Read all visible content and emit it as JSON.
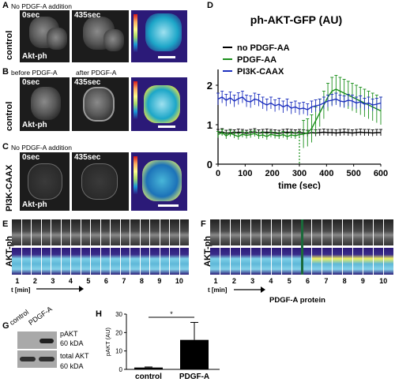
{
  "panels": {
    "a": {
      "letter": "A",
      "caption": "No PDGF-A addition",
      "row_label": "control",
      "t0": "0sec",
      "t1": "435sec",
      "marker": "Akt-ph"
    },
    "b": {
      "letter": "B",
      "caption_left": "before PDGF-A",
      "caption_right": "after PDGF-A",
      "row_label": "control",
      "t0": "0sec",
      "t1": "435sec",
      "marker": "Akt-ph"
    },
    "c": {
      "letter": "C",
      "caption": "No PDGF-A addition",
      "row_label": "PI3K-CAAX",
      "t0": "0sec",
      "t1": "435sec",
      "marker": "Akt-ph"
    },
    "d": {
      "letter": "D"
    },
    "e": {
      "letter": "E",
      "row_label": "AKT-ph",
      "ticks": [
        "1",
        "2",
        "3",
        "4",
        "5",
        "6",
        "7",
        "8",
        "9",
        "10"
      ],
      "axis_label": "t [min]"
    },
    "f": {
      "letter": "F",
      "row_label": "AKT-ph",
      "ticks": [
        "1",
        "2",
        "3",
        "4",
        "5",
        "6",
        "7",
        "8",
        "9",
        "10"
      ],
      "axis_label": "t [min]",
      "arrow_label": "PDGF-A protein"
    },
    "g": {
      "letter": "G",
      "lanes": [
        "control",
        "PDGF-A"
      ],
      "band1": "pAKT",
      "band1_kda": "60 kDA",
      "band2": "total AKT",
      "band2_kda": "60 kDA"
    },
    "h": {
      "letter": "H"
    }
  },
  "chart_data": [
    {
      "type": "line",
      "title": "ph-AKT-GFP (AU)",
      "xlabel": "time (sec)",
      "ylabel": "",
      "xlim": [
        0,
        600
      ],
      "ylim": [
        0,
        2.2
      ],
      "xticks": [
        "0",
        "100",
        "200",
        "300",
        "400",
        "500",
        "600"
      ],
      "yticks": [
        "0",
        "1",
        "2"
      ],
      "annotation": {
        "x": 300,
        "style": "dotted vertical line"
      },
      "legend": "top",
      "x": [
        0,
        15,
        30,
        45,
        60,
        75,
        90,
        105,
        120,
        135,
        150,
        165,
        180,
        195,
        210,
        225,
        240,
        255,
        270,
        285,
        300,
        315,
        330,
        345,
        360,
        375,
        390,
        405,
        420,
        435,
        450,
        465,
        480,
        495,
        510,
        525,
        540,
        555,
        570,
        585,
        600
      ],
      "series": [
        {
          "name": "no PDGF-AA",
          "color": "#000000",
          "values": [
            0.8,
            0.82,
            0.78,
            0.8,
            0.79,
            0.81,
            0.8,
            0.78,
            0.8,
            0.82,
            0.79,
            0.8,
            0.81,
            0.8,
            0.79,
            0.78,
            0.8,
            0.81,
            0.8,
            0.79,
            0.8,
            0.79,
            0.78,
            0.8,
            0.79,
            0.8,
            0.81,
            0.8,
            0.8,
            0.79,
            0.8,
            0.81,
            0.8,
            0.79,
            0.8,
            0.81,
            0.8,
            0.8,
            0.79,
            0.8,
            0.8
          ]
        },
        {
          "name": "PDGF-AA",
          "color": "#1a8f1a",
          "values": [
            0.75,
            0.8,
            0.72,
            0.78,
            0.74,
            0.7,
            0.76,
            0.73,
            0.75,
            0.78,
            0.72,
            0.74,
            0.7,
            0.76,
            0.73,
            0.72,
            0.75,
            0.7,
            0.74,
            0.72,
            0.75,
            0.76,
            0.8,
            0.9,
            1.1,
            1.3,
            1.5,
            1.7,
            1.85,
            1.9,
            1.85,
            1.8,
            1.75,
            1.7,
            1.65,
            1.6,
            1.55,
            1.5,
            1.45,
            1.4,
            1.35
          ]
        },
        {
          "name": "PI3K-CAAX",
          "color": "#1c2fbf",
          "values": [
            1.65,
            1.7,
            1.62,
            1.68,
            1.6,
            1.66,
            1.7,
            1.6,
            1.58,
            1.65,
            1.62,
            1.55,
            1.5,
            1.55,
            1.48,
            1.52,
            1.45,
            1.5,
            1.42,
            1.45,
            1.4,
            1.42,
            1.38,
            1.45,
            1.48,
            1.5,
            1.55,
            1.6,
            1.62,
            1.65,
            1.6,
            1.58,
            1.62,
            1.6,
            1.55,
            1.58,
            1.52,
            1.55,
            1.5,
            1.52,
            1.55
          ]
        }
      ]
    },
    {
      "type": "bar",
      "title": "",
      "ylabel": "pAKT (AU)",
      "xlabel": "",
      "ylim": [
        0,
        30
      ],
      "yticks": [
        "0",
        "10",
        "20",
        "30"
      ],
      "categories": [
        "control",
        "PDGF-A"
      ],
      "values": [
        1,
        16
      ],
      "errors": [
        0.3,
        9.5
      ],
      "significance": "*"
    }
  ]
}
